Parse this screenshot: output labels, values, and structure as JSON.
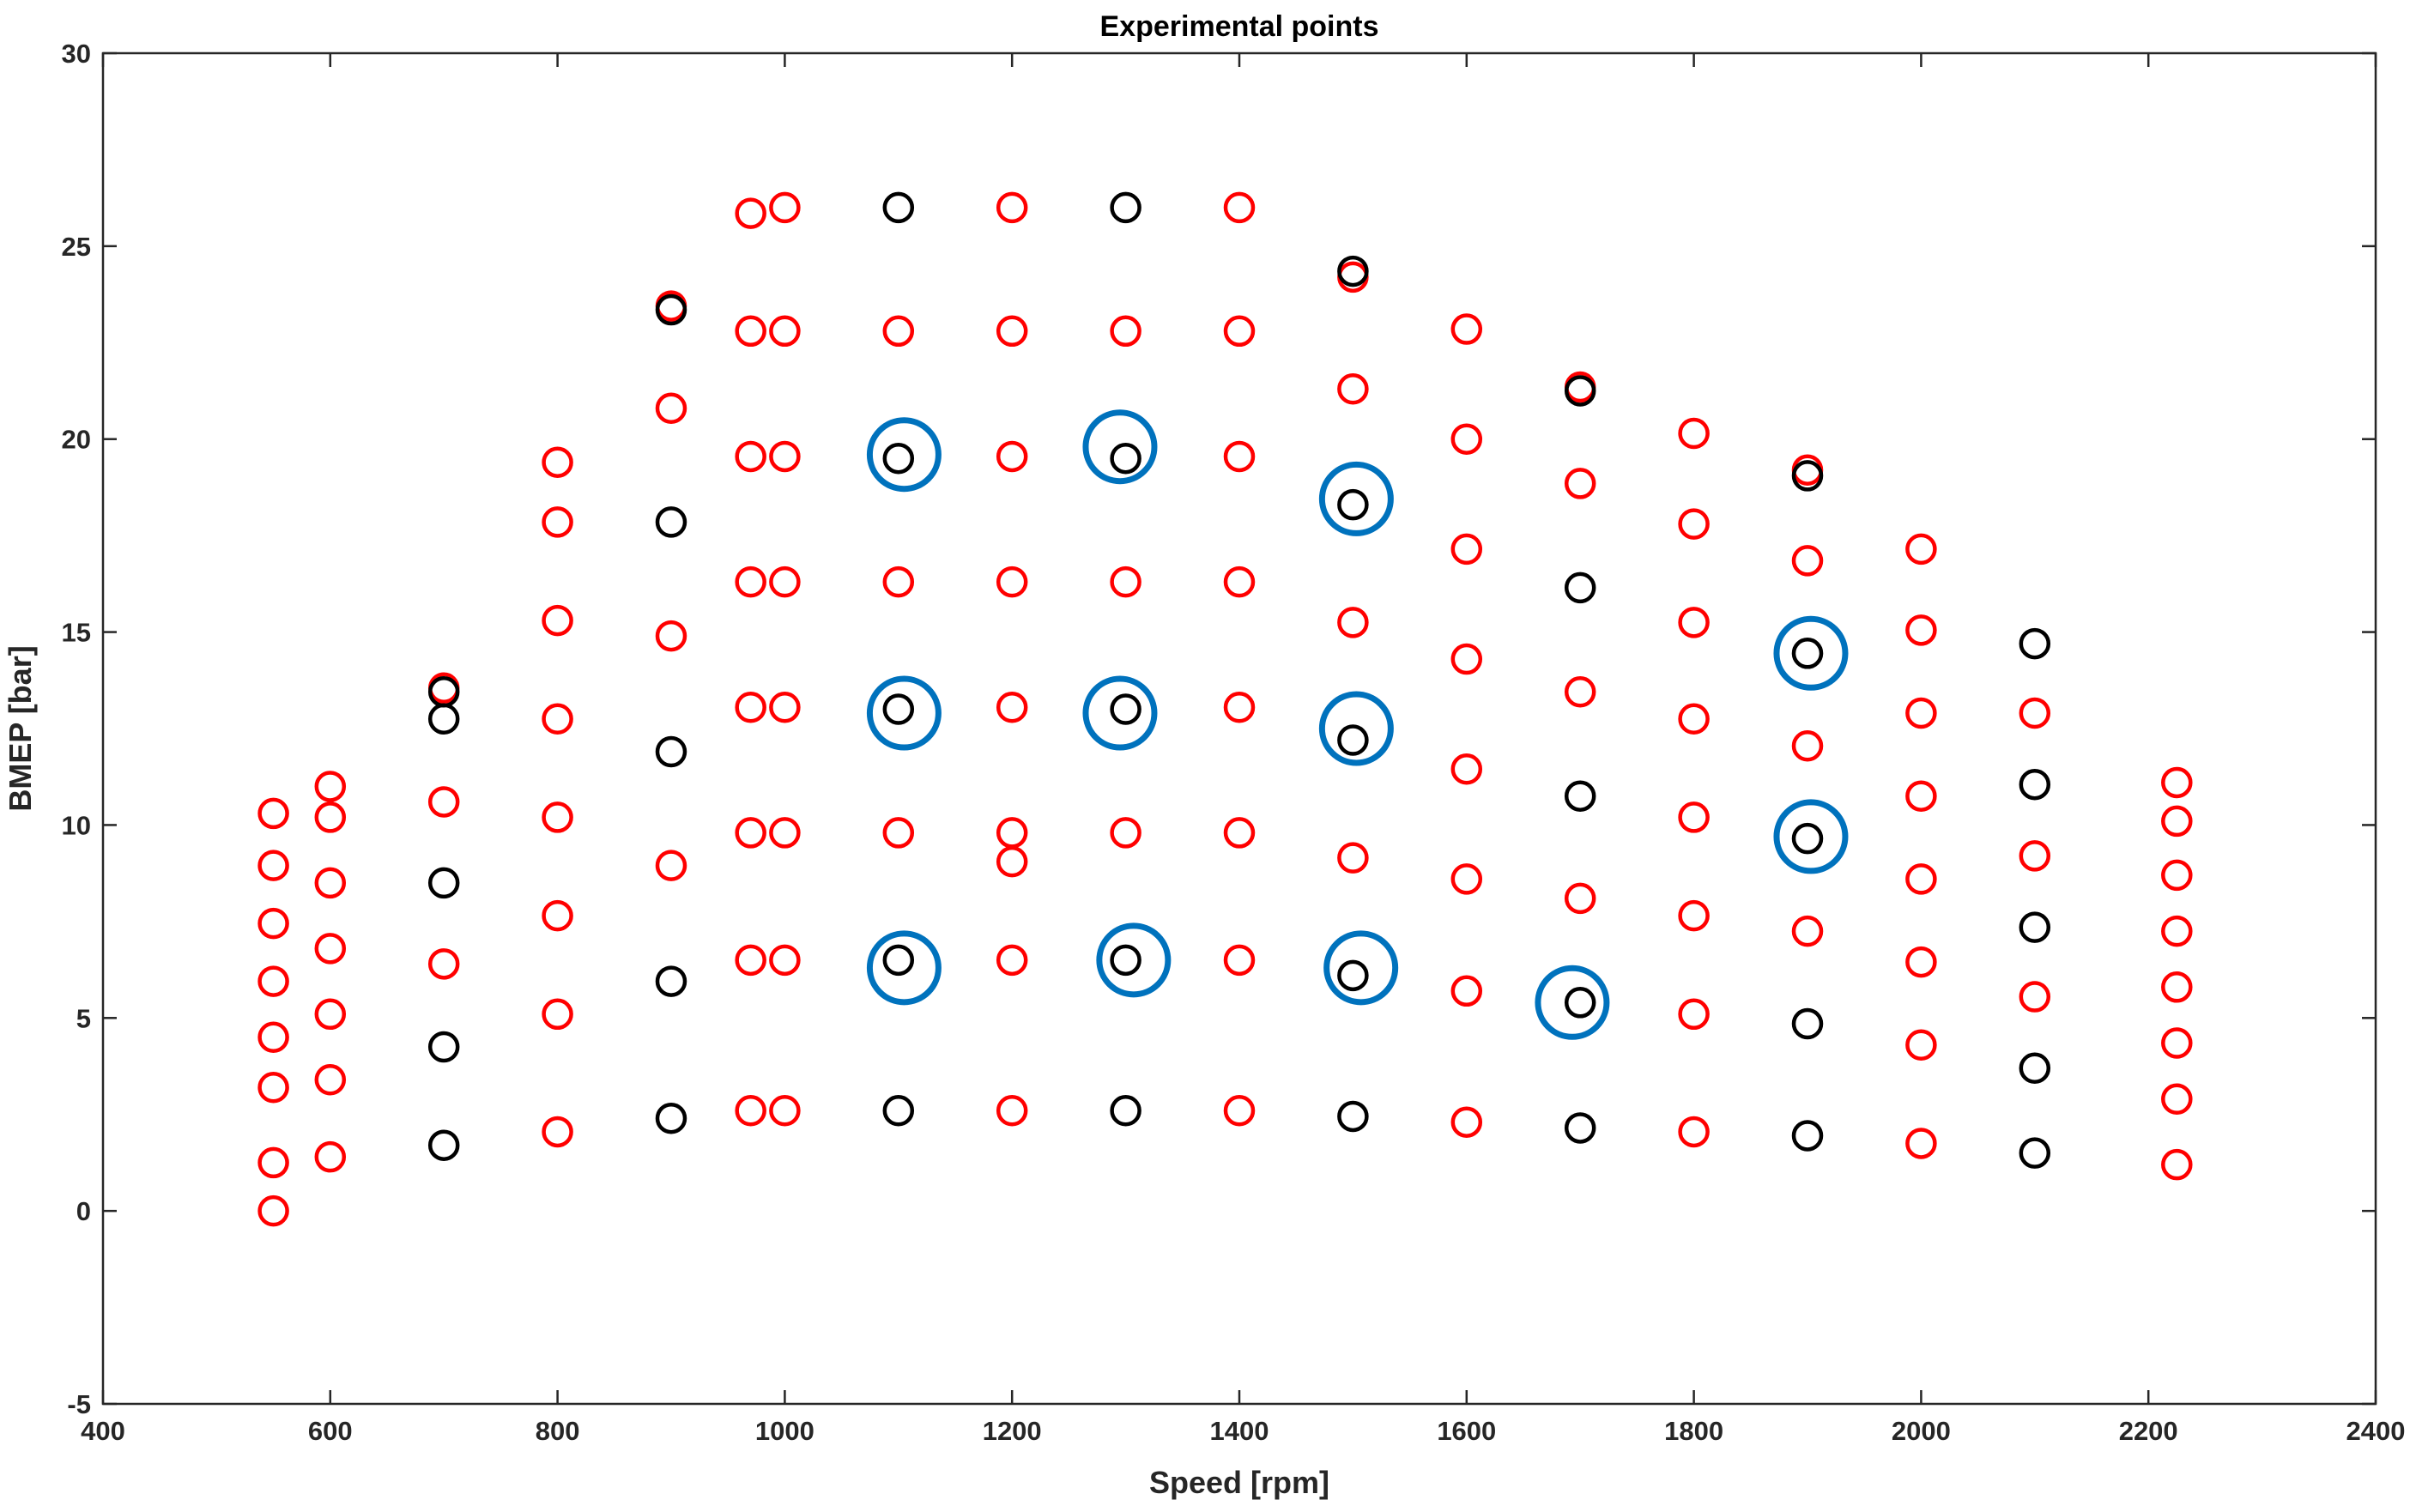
{
  "chart_data": {
    "type": "scatter",
    "title": "Experimental points",
    "xlabel": "Speed [rpm]",
    "ylabel": "BMEP [bar]",
    "xlim": [
      400,
      2400
    ],
    "ylim": [
      -5,
      30
    ],
    "xticks": [
      400,
      600,
      800,
      1000,
      1200,
      1400,
      1600,
      1800,
      2000,
      2200,
      2400
    ],
    "yticks": [
      -5,
      0,
      5,
      10,
      15,
      20,
      25,
      30
    ],
    "grid": false,
    "colors": {
      "red": "#ff0000",
      "black": "#000000",
      "blue": "#0072bd",
      "axis": "#262626"
    },
    "series": [
      {
        "name": "red",
        "marker": "circle",
        "color": "#ff0000",
        "points": [
          [
            550,
            0.0
          ],
          [
            550,
            1.25
          ],
          [
            550,
            3.2
          ],
          [
            550,
            4.5
          ],
          [
            550,
            5.95
          ],
          [
            550,
            7.45
          ],
          [
            550,
            8.95
          ],
          [
            550,
            10.3
          ],
          [
            600,
            1.4
          ],
          [
            600,
            3.4
          ],
          [
            600,
            5.1
          ],
          [
            600,
            6.8
          ],
          [
            600,
            8.5
          ],
          [
            600,
            10.2
          ],
          [
            600,
            11.0
          ],
          [
            700,
            6.4
          ],
          [
            700,
            10.6
          ],
          [
            700,
            13.55
          ],
          [
            800,
            2.05
          ],
          [
            800,
            5.1
          ],
          [
            800,
            7.65
          ],
          [
            800,
            10.2
          ],
          [
            800,
            12.75
          ],
          [
            800,
            15.3
          ],
          [
            800,
            17.85
          ],
          [
            800,
            19.4
          ],
          [
            900,
            8.95
          ],
          [
            900,
            14.9
          ],
          [
            900,
            20.8
          ],
          [
            900,
            23.45
          ],
          [
            970,
            2.6
          ],
          [
            970,
            6.5
          ],
          [
            970,
            9.8
          ],
          [
            970,
            13.05
          ],
          [
            970,
            16.3
          ],
          [
            970,
            19.55
          ],
          [
            970,
            22.8
          ],
          [
            970,
            25.85
          ],
          [
            1000,
            2.6
          ],
          [
            1000,
            6.5
          ],
          [
            1000,
            9.8
          ],
          [
            1000,
            13.05
          ],
          [
            1000,
            16.3
          ],
          [
            1000,
            19.55
          ],
          [
            1000,
            22.8
          ],
          [
            1000,
            26.0
          ],
          [
            1100,
            9.8
          ],
          [
            1100,
            16.3
          ],
          [
            1100,
            22.8
          ],
          [
            1200,
            2.6
          ],
          [
            1200,
            6.5
          ],
          [
            1200,
            9.05
          ],
          [
            1200,
            9.8
          ],
          [
            1200,
            13.05
          ],
          [
            1200,
            16.3
          ],
          [
            1200,
            19.55
          ],
          [
            1200,
            22.8
          ],
          [
            1200,
            26.0
          ],
          [
            1300,
            9.8
          ],
          [
            1300,
            16.3
          ],
          [
            1300,
            22.8
          ],
          [
            1400,
            2.6
          ],
          [
            1400,
            6.5
          ],
          [
            1400,
            9.8
          ],
          [
            1400,
            13.05
          ],
          [
            1400,
            16.3
          ],
          [
            1400,
            19.55
          ],
          [
            1400,
            22.8
          ],
          [
            1400,
            26.0
          ],
          [
            1500,
            9.15
          ],
          [
            1500,
            15.25
          ],
          [
            1500,
            21.3
          ],
          [
            1500,
            24.2
          ],
          [
            1600,
            2.3
          ],
          [
            1600,
            5.7
          ],
          [
            1600,
            8.6
          ],
          [
            1600,
            11.45
          ],
          [
            1600,
            14.3
          ],
          [
            1600,
            17.15
          ],
          [
            1600,
            20.0
          ],
          [
            1600,
            22.85
          ],
          [
            1700,
            8.1
          ],
          [
            1700,
            13.45
          ],
          [
            1700,
            18.85
          ],
          [
            1700,
            21.35
          ],
          [
            1800,
            2.05
          ],
          [
            1800,
            5.1
          ],
          [
            1800,
            7.65
          ],
          [
            1800,
            10.2
          ],
          [
            1800,
            12.75
          ],
          [
            1800,
            15.25
          ],
          [
            1800,
            17.8
          ],
          [
            1800,
            20.15
          ],
          [
            1900,
            7.25
          ],
          [
            1900,
            12.05
          ],
          [
            1900,
            16.85
          ],
          [
            1900,
            19.2
          ],
          [
            2000,
            1.75
          ],
          [
            2000,
            4.3
          ],
          [
            2000,
            6.45
          ],
          [
            2000,
            8.6
          ],
          [
            2000,
            10.75
          ],
          [
            2000,
            12.9
          ],
          [
            2000,
            15.05
          ],
          [
            2000,
            17.15
          ],
          [
            2100,
            5.55
          ],
          [
            2100,
            9.2
          ],
          [
            2100,
            12.9
          ],
          [
            2225,
            1.2
          ],
          [
            2225,
            2.9
          ],
          [
            2225,
            4.35
          ],
          [
            2225,
            5.8
          ],
          [
            2225,
            7.25
          ],
          [
            2225,
            8.7
          ],
          [
            2225,
            10.1
          ],
          [
            2225,
            11.1
          ]
        ]
      },
      {
        "name": "black",
        "marker": "circle",
        "color": "#000000",
        "points": [
          [
            700,
            1.7
          ],
          [
            700,
            4.25
          ],
          [
            700,
            8.5
          ],
          [
            700,
            12.75
          ],
          [
            700,
            13.45
          ],
          [
            900,
            2.4
          ],
          [
            900,
            5.95
          ],
          [
            900,
            11.9
          ],
          [
            900,
            17.85
          ],
          [
            900,
            23.35
          ],
          [
            1100,
            2.6
          ],
          [
            1100,
            6.5
          ],
          [
            1100,
            13.0
          ],
          [
            1100,
            19.5
          ],
          [
            1100,
            26.0
          ],
          [
            1300,
            2.6
          ],
          [
            1300,
            6.5
          ],
          [
            1300,
            13.0
          ],
          [
            1300,
            19.5
          ],
          [
            1300,
            26.0
          ],
          [
            1500,
            2.45
          ],
          [
            1500,
            6.1
          ],
          [
            1500,
            12.2
          ],
          [
            1500,
            18.3
          ],
          [
            1500,
            24.35
          ],
          [
            1700,
            2.15
          ],
          [
            1700,
            5.4
          ],
          [
            1700,
            10.75
          ],
          [
            1700,
            16.15
          ],
          [
            1700,
            21.25
          ],
          [
            1900,
            1.95
          ],
          [
            1900,
            4.85
          ],
          [
            1900,
            9.65
          ],
          [
            1900,
            14.45
          ],
          [
            1900,
            19.05
          ],
          [
            2100,
            1.5
          ],
          [
            2100,
            3.7
          ],
          [
            2100,
            7.35
          ],
          [
            2100,
            11.05
          ],
          [
            2100,
            14.7
          ]
        ]
      },
      {
        "name": "blue",
        "marker": "large circle",
        "color": "#0072bd",
        "points": [
          [
            1105,
            6.3
          ],
          [
            1105,
            12.9
          ],
          [
            1105,
            19.6
          ],
          [
            1307,
            6.5
          ],
          [
            1295,
            12.9
          ],
          [
            1295,
            19.8
          ],
          [
            1507,
            6.3
          ],
          [
            1503,
            12.5
          ],
          [
            1503,
            18.45
          ],
          [
            1693,
            5.4
          ],
          [
            1903,
            9.7
          ],
          [
            1903,
            14.45
          ]
        ]
      }
    ]
  }
}
